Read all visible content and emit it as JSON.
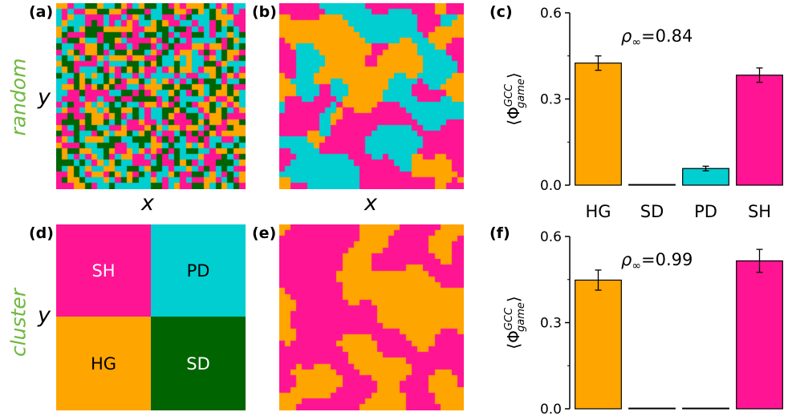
{
  "figure": {
    "panel_labels": [
      "(a)",
      "(b)",
      "(c)",
      "(d)",
      "(e)",
      "(f)"
    ],
    "row_labels": {
      "top": "random",
      "bottom": "cluster"
    },
    "axis_labels": {
      "x": "x",
      "y": "y"
    },
    "colors": {
      "HG": "#FFA500",
      "SD": "#006400",
      "PD": "#00CED1",
      "SH": "#FF1493",
      "row_label": "#6fb83f"
    },
    "lattice_a": {
      "description_key": "random initial strategies",
      "size": 32
    },
    "lattice_b": {
      "size": 32
    },
    "lattice_e": {
      "size": 32
    },
    "cluster_d": {
      "quadrants": [
        {
          "label": "SH",
          "game": "SH"
        },
        {
          "label": "PD",
          "game": "PD"
        },
        {
          "label": "HG",
          "game": "HG"
        },
        {
          "label": "SD",
          "game": "SD"
        }
      ]
    }
  },
  "chart_data": [
    {
      "type": "bar",
      "panel": "(c)",
      "categories": [
        "HG",
        "SD",
        "PD",
        "SH"
      ],
      "values": [
        0.425,
        0.001,
        0.058,
        0.383
      ],
      "errors": [
        0.025,
        0.0,
        0.008,
        0.025
      ],
      "colors": [
        "#FFA500",
        "#006400",
        "#00CED1",
        "#FF1493"
      ],
      "ylabel": "⟨Φ^{GCC}_{game}⟩",
      "ylabel_main": "Φ",
      "ylabel_sup": "GCC",
      "ylabel_sub": "game",
      "ylim": [
        0,
        0.6
      ],
      "yticks": [
        "0.0",
        "0.3",
        "0.6"
      ],
      "annotation": "ρ∞=0.84",
      "annotation_rho": "ρ",
      "annotation_sub": "∞",
      "annotation_val": "=0.84",
      "show_xticklabels": true
    },
    {
      "type": "bar",
      "panel": "(f)",
      "categories": [
        "HG",
        "SD",
        "PD",
        "SH"
      ],
      "values": [
        0.448,
        0.0,
        0.0,
        0.515
      ],
      "errors": [
        0.035,
        0.0,
        0.0,
        0.04
      ],
      "colors": [
        "#FFA500",
        "#006400",
        "#00CED1",
        "#FF1493"
      ],
      "ylabel": "⟨Φ^{GCC}_{game}⟩",
      "ylabel_main": "Φ",
      "ylabel_sup": "GCC",
      "ylabel_sub": "game",
      "ylim": [
        0,
        0.6
      ],
      "yticks": [
        "0.0",
        "0.3",
        "0.6"
      ],
      "annotation": "ρ∞=0.99",
      "annotation_rho": "ρ",
      "annotation_sub": "∞",
      "annotation_val": "=0.99",
      "show_xticklabels": false
    }
  ]
}
